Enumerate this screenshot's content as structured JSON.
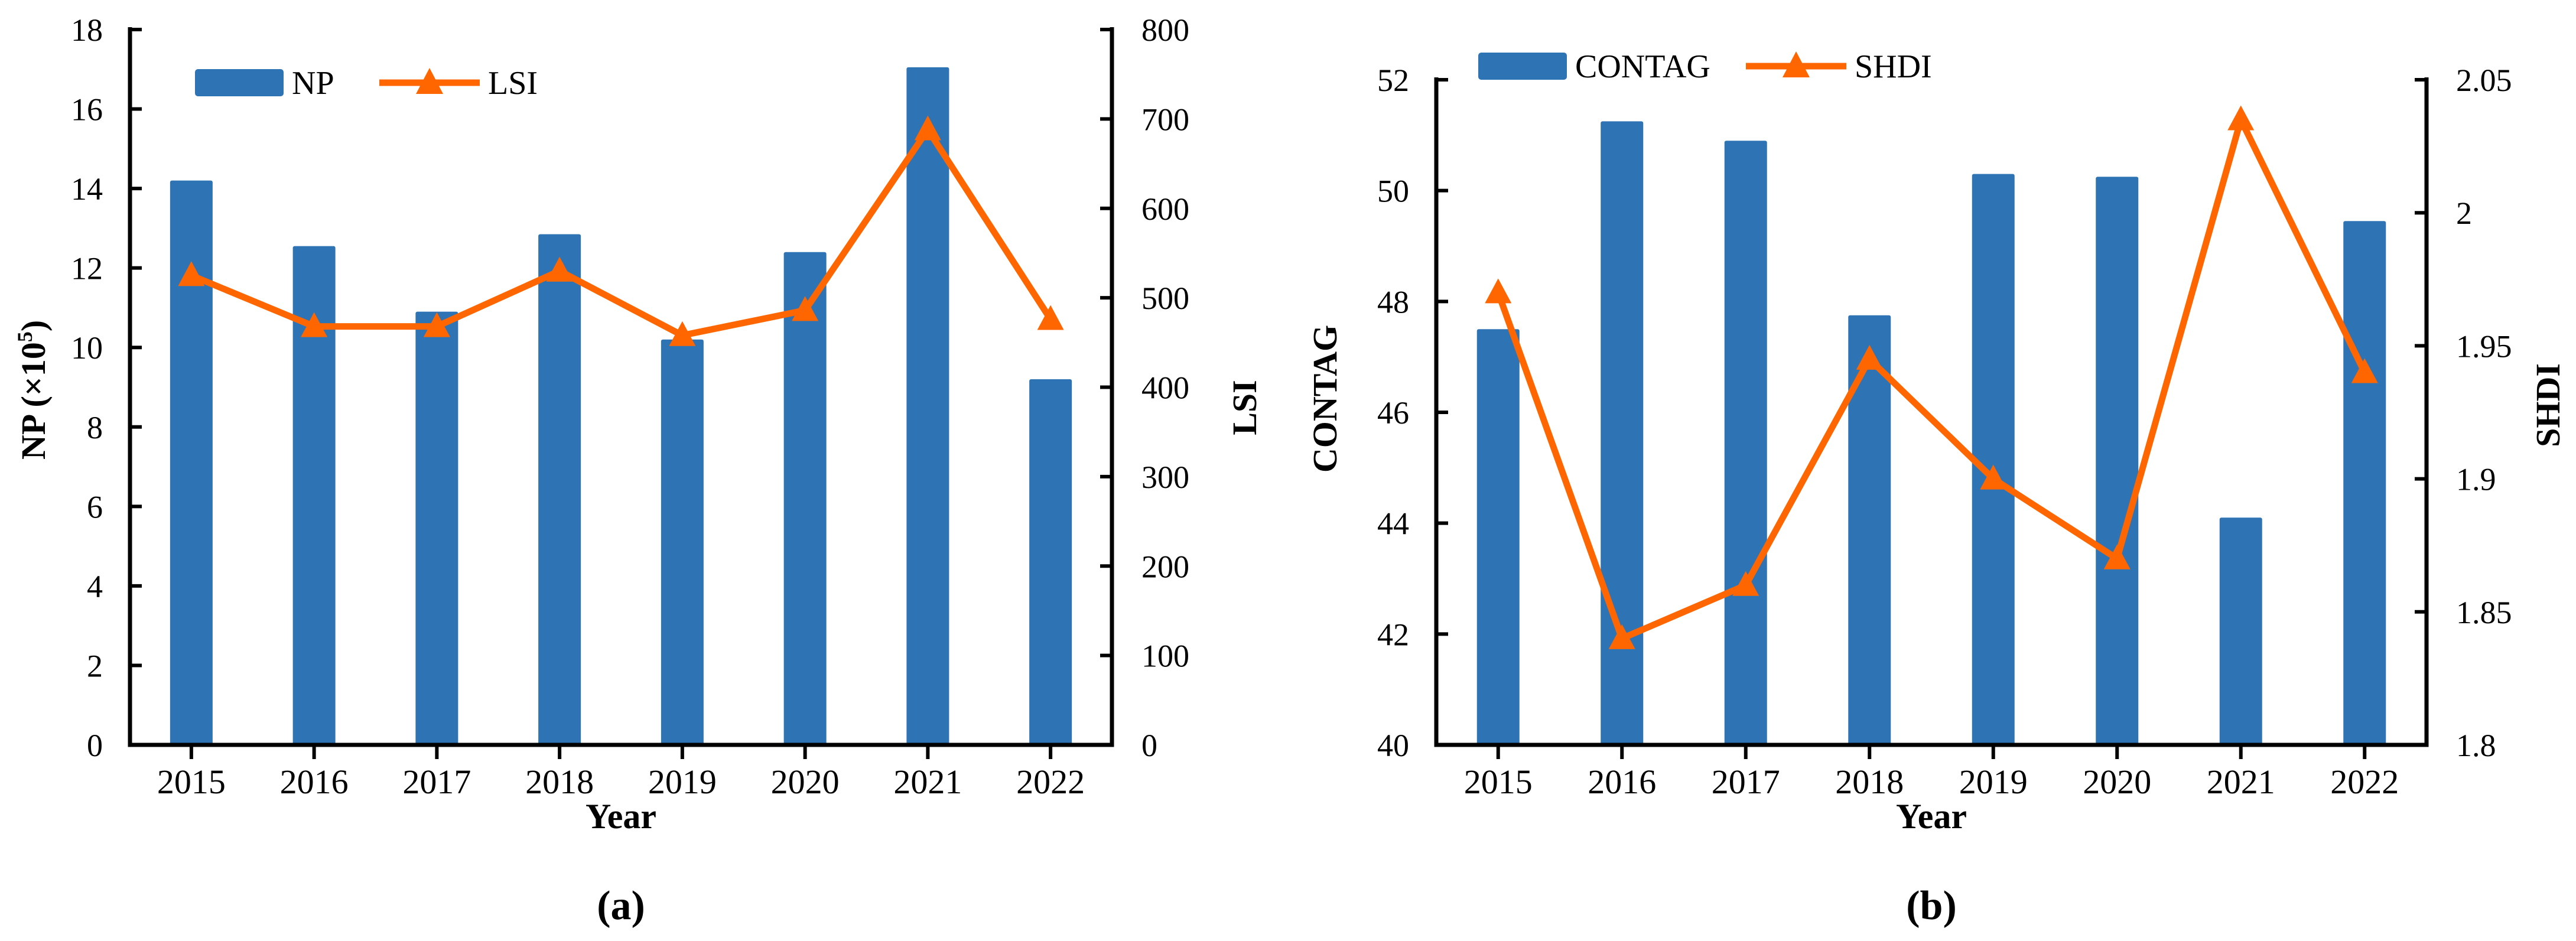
{
  "figure": {
    "description": "Two-panel bar and line combination chart of landscape pattern indices by year",
    "background_color": "#FFFFFF",
    "bar_color": "#2E74B5",
    "line_color": "#FF6600",
    "axis_color": "#000000",
    "text_color": "#000000",
    "marker_shape": "filled triangle-up"
  },
  "chart_data": [
    {
      "type": "bar+line dual-axis",
      "caption": "(a)",
      "xlabel": "Year",
      "legend_position": "top-left inside plot",
      "categories": [
        "2015",
        "2016",
        "2017",
        "2018",
        "2019",
        "2020",
        "2021",
        "2022"
      ],
      "series": [
        {
          "name": "NP",
          "type": "bar",
          "axis": "left",
          "color": "#2E74B5",
          "values": [
            14.2,
            12.55,
            10.9,
            12.85,
            10.2,
            12.4,
            17.05,
            9.2
          ]
        },
        {
          "name": "LSI",
          "type": "line",
          "axis": "right",
          "color": "#FF6600",
          "marker": "triangle",
          "values": [
            525,
            468,
            468,
            530,
            458,
            486,
            688,
            476
          ]
        }
      ],
      "left_axis": {
        "label": "NP (×10⁵)",
        "label_parts": {
          "main": "NP (×10",
          "sup": "5",
          "tail": ")"
        },
        "min": 0,
        "max": 18,
        "ticks": [
          0,
          2,
          4,
          6,
          8,
          10,
          12,
          14,
          16,
          18
        ],
        "tick_labels": [
          "0",
          "2",
          "4",
          "6",
          "8",
          "10",
          "12",
          "14",
          "16",
          "18"
        ]
      },
      "right_axis": {
        "label": "LSI",
        "label_parts": {
          "main": "LSI",
          "sup": "",
          "tail": ""
        },
        "min": 0,
        "max": 800,
        "ticks": [
          0,
          100,
          200,
          300,
          400,
          500,
          600,
          700,
          800
        ],
        "tick_labels": [
          "0",
          "100",
          "200",
          "300",
          "400",
          "500",
          "600",
          "700",
          "800"
        ]
      },
      "legend": [
        "NP",
        "LSI"
      ]
    },
    {
      "type": "bar+line dual-axis",
      "caption": "(b)",
      "xlabel": "Year",
      "legend_position": "top-left above plot",
      "categories": [
        "2015",
        "2016",
        "2017",
        "2018",
        "2019",
        "2020",
        "2021",
        "2022"
      ],
      "series": [
        {
          "name": "CONTAG",
          "type": "bar",
          "axis": "left",
          "color": "#2E74B5",
          "values": [
            47.5,
            51.25,
            50.9,
            47.75,
            50.3,
            50.25,
            44.1,
            49.45
          ]
        },
        {
          "name": "SHDI",
          "type": "line",
          "axis": "right",
          "color": "#FF6600",
          "marker": "triangle",
          "values": [
            1.97,
            1.84,
            1.86,
            1.945,
            1.9,
            1.87,
            2.035,
            1.94
          ]
        }
      ],
      "left_axis": {
        "label": "CONTAG",
        "label_parts": {
          "main": "CONTAG",
          "sup": "",
          "tail": ""
        },
        "min": 40,
        "max": 52,
        "ticks": [
          40,
          42,
          44,
          46,
          48,
          50,
          52
        ],
        "tick_labels": [
          "40",
          "42",
          "44",
          "46",
          "48",
          "50",
          "52"
        ]
      },
      "right_axis": {
        "label": "SHDI",
        "label_parts": {
          "main": "SHDI",
          "sup": "",
          "tail": ""
        },
        "min": 1.8,
        "max": 2.05,
        "ticks": [
          1.8,
          1.85,
          1.9,
          1.95,
          2,
          2.05
        ],
        "tick_labels": [
          "1.8",
          "1.85",
          "1.9",
          "1.95",
          "2",
          "2.05"
        ]
      },
      "legend": [
        "CONTAG",
        "SHDI"
      ]
    }
  ]
}
